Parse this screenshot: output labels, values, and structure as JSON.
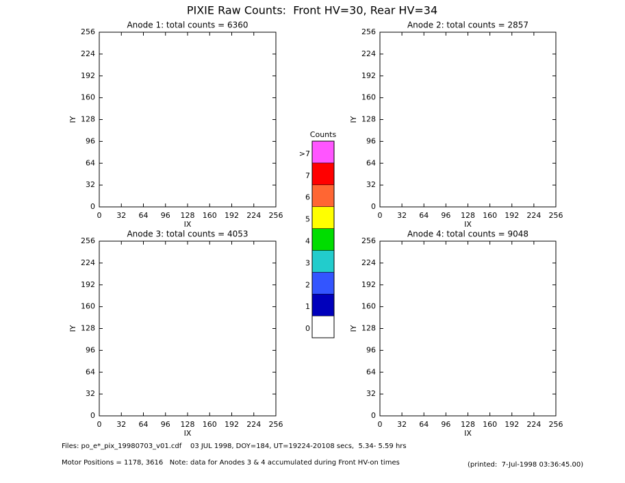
{
  "title": "PIXIE Raw Counts:  Front HV=30, Rear HV=34",
  "chart_data": [
    {
      "type": "heatmap",
      "title": "Anode 1: total counts = 6360",
      "xlabel": "IX",
      "ylabel": "IY",
      "xlim": [
        0,
        256
      ],
      "ylim": [
        0,
        256
      ],
      "xticks": [
        0,
        32,
        64,
        96,
        128,
        160,
        192,
        224,
        256
      ],
      "yticks": [
        0,
        32,
        64,
        96,
        128,
        160,
        192,
        224,
        256
      ]
    },
    {
      "type": "heatmap",
      "title": "Anode 2: total counts = 2857",
      "xlabel": "IX",
      "ylabel": "IY",
      "xlim": [
        0,
        256
      ],
      "ylim": [
        0,
        256
      ],
      "xticks": [
        0,
        32,
        64,
        96,
        128,
        160,
        192,
        224,
        256
      ],
      "yticks": [
        0,
        32,
        64,
        96,
        128,
        160,
        192,
        224,
        256
      ]
    },
    {
      "type": "heatmap",
      "title": "Anode 3: total counts = 4053",
      "xlabel": "IX",
      "ylabel": "IY",
      "xlim": [
        0,
        256
      ],
      "ylim": [
        0,
        256
      ],
      "xticks": [
        0,
        32,
        64,
        96,
        128,
        160,
        192,
        224,
        256
      ],
      "yticks": [
        0,
        32,
        64,
        96,
        128,
        160,
        192,
        224,
        256
      ]
    },
    {
      "type": "heatmap",
      "title": "Anode 4: total counts = 9048",
      "xlabel": "IX",
      "ylabel": "IY",
      "xlim": [
        0,
        256
      ],
      "ylim": [
        0,
        256
      ],
      "xticks": [
        0,
        32,
        64,
        96,
        128,
        160,
        192,
        224,
        256
      ],
      "yticks": [
        0,
        32,
        64,
        96,
        128,
        160,
        192,
        224,
        256
      ]
    }
  ],
  "colorbar": {
    "title": "Counts",
    "levels": [
      {
        "label": "0",
        "color": "#ffffff"
      },
      {
        "label": "1",
        "color": "#0000bb"
      },
      {
        "label": "2",
        "color": "#3355ff"
      },
      {
        "label": "3",
        "color": "#22cccc"
      },
      {
        "label": "4",
        "color": "#00dd00"
      },
      {
        "label": "5",
        "color": "#ffff00"
      },
      {
        "label": "6",
        "color": "#ff6633"
      },
      {
        "label": "7",
        "color": "#ff0000"
      },
      {
        "label": ">7",
        "color": "#ff55ff"
      }
    ]
  },
  "footer": {
    "files": "Files: po_e*_pix_19980703_v01.cdf    03 JUL 1998, DOY=184, UT=19224-20108 secs,  5.34- 5.59 hrs",
    "motor": "Motor Positions = 1178, 3616   Note: data for Anodes 3 & 4 accumulated during Front HV-on times",
    "printed": "(printed:  7-Jul-1998 03:36:45.00)"
  }
}
